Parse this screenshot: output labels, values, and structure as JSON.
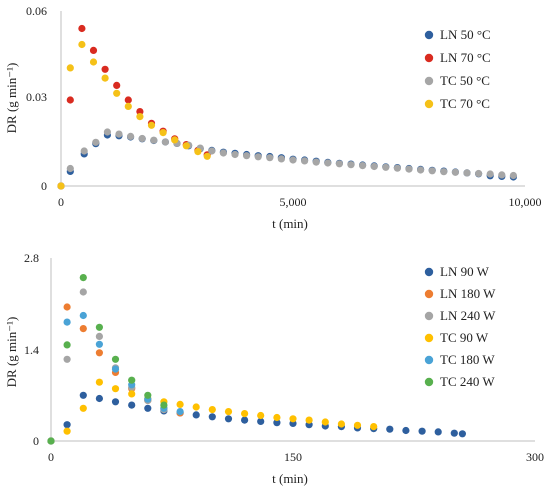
{
  "chart_data": [
    {
      "type": "scatter",
      "xlabel": "t (min)",
      "ylabel": "DR (g min⁻¹)",
      "xlim": [
        0,
        10000
      ],
      "ylim": [
        0,
        0.06
      ],
      "xticks": [
        0,
        5000,
        10000
      ],
      "xtick_labels": [
        "0",
        "5,000",
        "10,000"
      ],
      "yticks": [
        0,
        0.03,
        0.06
      ],
      "ytick_labels": [
        "0",
        "0.03",
        "0.06"
      ],
      "grid": false,
      "legend_position": "top-right",
      "series": [
        {
          "name": "LN 50 °C",
          "color": "#2e5f9e",
          "points": [
            [
              0,
              0
            ],
            [
              200,
              0.005
            ],
            [
              500,
              0.011
            ],
            [
              750,
              0.0145
            ],
            [
              1000,
              0.0175
            ],
            [
              1250,
              0.0172
            ],
            [
              1500,
              0.0168
            ],
            [
              1750,
              0.0162
            ],
            [
              2000,
              0.0156
            ],
            [
              2250,
              0.0151
            ],
            [
              2500,
              0.0146
            ],
            [
              2750,
              0.0138
            ],
            [
              3000,
              0.0128
            ],
            [
              3250,
              0.0122
            ],
            [
              3500,
              0.0116
            ],
            [
              3750,
              0.0112
            ],
            [
              4000,
              0.0108
            ],
            [
              4250,
              0.0104
            ],
            [
              4500,
              0.0101
            ],
            [
              4750,
              0.0097
            ],
            [
              5000,
              0.0092
            ],
            [
              5250,
              0.0089
            ],
            [
              5500,
              0.0085
            ],
            [
              5750,
              0.0081
            ],
            [
              6000,
              0.0078
            ],
            [
              6250,
              0.0075
            ],
            [
              6500,
              0.0072
            ],
            [
              6750,
              0.0069
            ],
            [
              7000,
              0.0066
            ],
            [
              7250,
              0.0063
            ],
            [
              7500,
              0.006
            ],
            [
              7750,
              0.0057
            ],
            [
              8000,
              0.0054
            ],
            [
              8250,
              0.0051
            ],
            [
              8500,
              0.0048
            ],
            [
              8750,
              0.0045
            ],
            [
              9000,
              0.0042
            ],
            [
              9250,
              0.0035
            ],
            [
              9500,
              0.0033
            ],
            [
              9750,
              0.0031
            ]
          ]
        },
        {
          "name": "LN 70 °C",
          "color": "#d92b20",
          "points": [
            [
              0,
              0
            ],
            [
              200,
              0.0295
            ],
            [
              450,
              0.054
            ],
            [
              700,
              0.0465
            ],
            [
              950,
              0.04
            ],
            [
              1200,
              0.0345
            ],
            [
              1450,
              0.0295
            ],
            [
              1700,
              0.0255
            ],
            [
              1950,
              0.0215
            ],
            [
              2200,
              0.0188
            ],
            [
              2450,
              0.0162
            ],
            [
              2700,
              0.0142
            ],
            [
              2950,
              0.0122
            ],
            [
              3150,
              0.0107
            ]
          ]
        },
        {
          "name": "TC 50 °C",
          "color": "#a6a6a6",
          "points": [
            [
              0,
              0
            ],
            [
              200,
              0.006
            ],
            [
              500,
              0.012
            ],
            [
              750,
              0.015
            ],
            [
              1000,
              0.0185
            ],
            [
              1250,
              0.0178
            ],
            [
              1500,
              0.017
            ],
            [
              1750,
              0.0163
            ],
            [
              2000,
              0.0157
            ],
            [
              2250,
              0.0151
            ],
            [
              2500,
              0.0146
            ],
            [
              2750,
              0.014
            ],
            [
              3000,
              0.013
            ],
            [
              3250,
              0.012
            ],
            [
              3500,
              0.0113
            ],
            [
              3750,
              0.0108
            ],
            [
              4000,
              0.0104
            ],
            [
              4250,
              0.01
            ],
            [
              4500,
              0.0097
            ],
            [
              4750,
              0.0093
            ],
            [
              5000,
              0.0089
            ],
            [
              5250,
              0.0086
            ],
            [
              5500,
              0.0082
            ],
            [
              5750,
              0.0079
            ],
            [
              6000,
              0.0076
            ],
            [
              6250,
              0.0073
            ],
            [
              6500,
              0.007
            ],
            [
              6750,
              0.0067
            ],
            [
              7000,
              0.0064
            ],
            [
              7250,
              0.0061
            ],
            [
              7500,
              0.0058
            ],
            [
              7750,
              0.0055
            ],
            [
              8000,
              0.0052
            ],
            [
              8250,
              0.0049
            ],
            [
              8500,
              0.0047
            ],
            [
              8750,
              0.0045
            ],
            [
              9000,
              0.0043
            ],
            [
              9250,
              0.0041
            ],
            [
              9500,
              0.0038
            ],
            [
              9750,
              0.0036
            ]
          ]
        },
        {
          "name": "TC 70 °C",
          "color": "#f5c118",
          "points": [
            [
              0,
              0
            ],
            [
              200,
              0.0405
            ],
            [
              450,
              0.0485
            ],
            [
              700,
              0.0425
            ],
            [
              950,
              0.037
            ],
            [
              1200,
              0.0318
            ],
            [
              1450,
              0.0273
            ],
            [
              1700,
              0.0238
            ],
            [
              1950,
              0.0208
            ],
            [
              2200,
              0.0183
            ],
            [
              2450,
              0.0158
            ],
            [
              2700,
              0.0138
            ],
            [
              2950,
              0.0118
            ],
            [
              3150,
              0.0102
            ]
          ]
        }
      ]
    },
    {
      "type": "scatter",
      "xlabel": "t (min)",
      "ylabel": "DR (g min⁻¹)",
      "xlim": [
        0,
        300
      ],
      "ylim": [
        0,
        2.8
      ],
      "xticks": [
        0,
        150,
        300
      ],
      "xtick_labels": [
        "0",
        "150",
        "300"
      ],
      "yticks": [
        0,
        1.4,
        2.8
      ],
      "ytick_labels": [
        "0",
        "1.4",
        "2.8"
      ],
      "grid": false,
      "legend_position": "top-right",
      "series": [
        {
          "name": "LN 90 W",
          "color": "#2e5f9e",
          "points": [
            [
              0,
              0
            ],
            [
              10,
              0.25
            ],
            [
              20,
              0.7
            ],
            [
              30,
              0.65
            ],
            [
              40,
              0.6
            ],
            [
              50,
              0.55
            ],
            [
              60,
              0.5
            ],
            [
              70,
              0.46
            ],
            [
              80,
              0.43
            ],
            [
              90,
              0.4
            ],
            [
              100,
              0.37
            ],
            [
              110,
              0.34
            ],
            [
              120,
              0.32
            ],
            [
              130,
              0.3
            ],
            [
              140,
              0.28
            ],
            [
              150,
              0.27
            ],
            [
              160,
              0.25
            ],
            [
              170,
              0.23
            ],
            [
              180,
              0.22
            ],
            [
              190,
              0.2
            ],
            [
              200,
              0.19
            ],
            [
              210,
              0.18
            ],
            [
              220,
              0.16
            ],
            [
              230,
              0.15
            ],
            [
              240,
              0.14
            ],
            [
              250,
              0.12
            ],
            [
              255,
              0.11
            ]
          ]
        },
        {
          "name": "LN 180 W",
          "color": "#ed7d31",
          "points": [
            [
              0,
              0
            ],
            [
              10,
              2.05
            ],
            [
              20,
              1.72
            ],
            [
              30,
              1.35
            ],
            [
              40,
              1.05
            ],
            [
              50,
              0.8
            ],
            [
              60,
              0.62
            ],
            [
              70,
              0.5
            ],
            [
              80,
              0.43
            ]
          ]
        },
        {
          "name": "LN 240 W",
          "color": "#a5a5a5",
          "points": [
            [
              0,
              0
            ],
            [
              10,
              1.25
            ],
            [
              20,
              2.28
            ],
            [
              30,
              1.6
            ],
            [
              40,
              1.12
            ],
            [
              50,
              0.82
            ],
            [
              60,
              0.62
            ],
            [
              70,
              0.48
            ]
          ]
        },
        {
          "name": "TC 90 W",
          "color": "#ffc000",
          "points": [
            [
              0,
              0
            ],
            [
              10,
              0.15
            ],
            [
              20,
              0.5
            ],
            [
              30,
              0.9
            ],
            [
              40,
              0.8
            ],
            [
              50,
              0.72
            ],
            [
              60,
              0.65
            ],
            [
              70,
              0.6
            ],
            [
              80,
              0.56
            ],
            [
              90,
              0.52
            ],
            [
              100,
              0.48
            ],
            [
              110,
              0.45
            ],
            [
              120,
              0.42
            ],
            [
              130,
              0.39
            ],
            [
              140,
              0.36
            ],
            [
              150,
              0.34
            ],
            [
              160,
              0.32
            ],
            [
              170,
              0.29
            ],
            [
              180,
              0.26
            ],
            [
              190,
              0.24
            ],
            [
              200,
              0.22
            ]
          ]
        },
        {
          "name": "TC 180 W",
          "color": "#4aa3d6",
          "points": [
            [
              0,
              0
            ],
            [
              10,
              1.82
            ],
            [
              20,
              1.92
            ],
            [
              30,
              1.48
            ],
            [
              40,
              1.1
            ],
            [
              50,
              0.86
            ],
            [
              60,
              0.64
            ],
            [
              70,
              0.5
            ],
            [
              80,
              0.45
            ]
          ]
        },
        {
          "name": "TC 240 W",
          "color": "#58b04e",
          "points": [
            [
              0,
              0
            ],
            [
              10,
              1.47
            ],
            [
              20,
              2.5
            ],
            [
              30,
              1.74
            ],
            [
              40,
              1.25
            ],
            [
              50,
              0.93
            ],
            [
              60,
              0.7
            ],
            [
              70,
              0.55
            ]
          ]
        }
      ]
    }
  ]
}
